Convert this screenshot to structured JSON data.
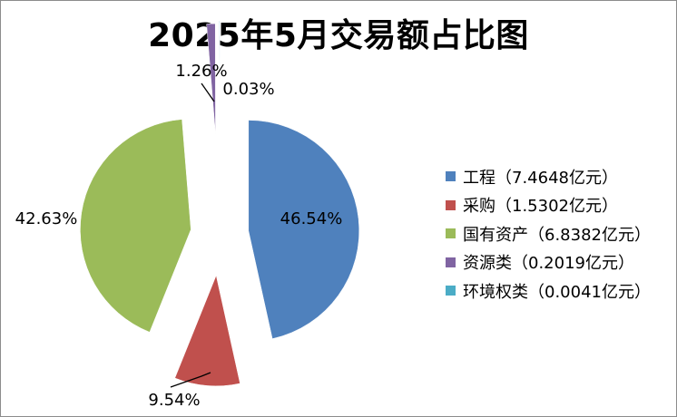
{
  "chart_data": {
    "type": "pie",
    "title": "2025年5月交易额占比图",
    "slices": [
      {
        "name": "工程",
        "value": 7.4648,
        "label": "46.54%",
        "color": "#4F81BD"
      },
      {
        "name": "采购",
        "value": 1.5302,
        "label": "9.54%",
        "color": "#C0504D"
      },
      {
        "name": "国有资产",
        "value": 6.8382,
        "label": "42.63%",
        "color": "#9BBB59"
      },
      {
        "name": "资源类",
        "value": 0.2019,
        "label": "1.26%",
        "color": "#8064A2"
      },
      {
        "name": "环境权类",
        "value": 0.0041,
        "label": "0.03%",
        "color": "#4BACC6"
      }
    ],
    "legend": [
      "工程（7.4648亿元）",
      "采购（1.5302亿元）",
      "国有资产（6.8382亿元）",
      "资源类（0.2019亿元）",
      "环境权类（0.0041亿元）"
    ],
    "legend_position": "right"
  }
}
